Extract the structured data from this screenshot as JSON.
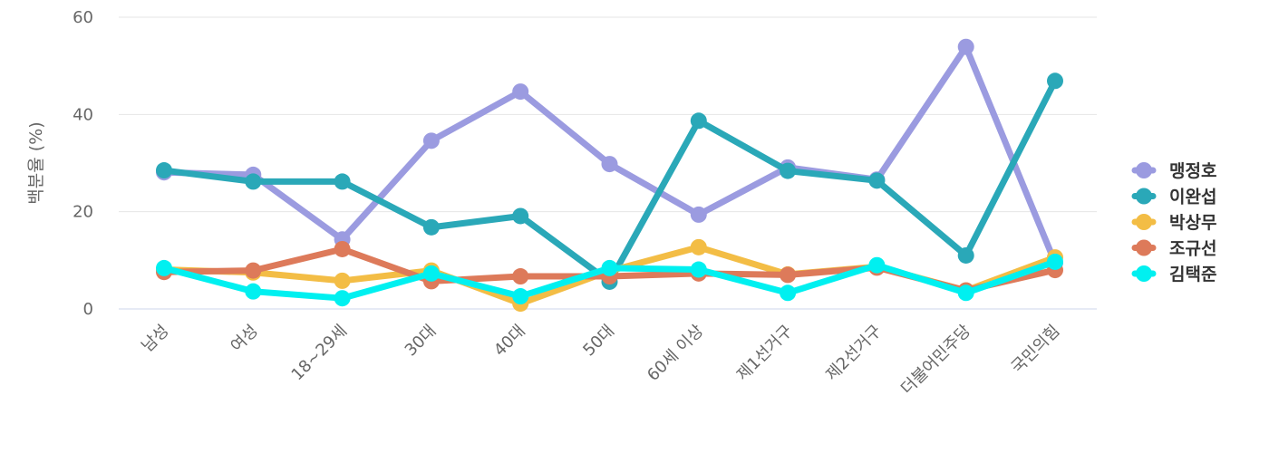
{
  "chart_data": {
    "type": "line",
    "title": "",
    "xlabel": "",
    "ylabel": "백분율 (%)",
    "ylim": [
      0,
      60
    ],
    "yticks": [
      0,
      20,
      40,
      60
    ],
    "categories": [
      "남성",
      "여성",
      "18~29세",
      "30대",
      "40대",
      "50대",
      "60세 이상",
      "제1선거구",
      "제2선거구",
      "더불어민주당",
      "국민의힘"
    ],
    "series": [
      {
        "name": "맹정호",
        "color": "#9b9be0",
        "values": [
          28.1,
          27.6,
          14.3,
          34.6,
          44.7,
          29.8,
          19.4,
          29.1,
          26.6,
          53.9,
          9.5
        ]
      },
      {
        "name": "이완섭",
        "color": "#2aa8b8",
        "values": [
          28.5,
          26.2,
          26.2,
          16.8,
          19.1,
          5.6,
          38.7,
          28.4,
          26.4,
          11.0,
          46.9
        ]
      },
      {
        "name": "박상무",
        "color": "#f3bd45",
        "values": [
          8.1,
          7.5,
          5.8,
          7.9,
          1.1,
          7.8,
          12.7,
          7.1,
          8.7,
          3.8,
          10.6
        ]
      },
      {
        "name": "조규선",
        "color": "#dd7a5a",
        "values": [
          7.6,
          7.9,
          12.3,
          5.7,
          6.7,
          6.7,
          7.3,
          7.0,
          8.5,
          3.8,
          8.0
        ]
      },
      {
        "name": "김택준",
        "color": "#00f0f0",
        "values": [
          8.4,
          3.6,
          2.2,
          7.3,
          2.6,
          8.4,
          8.1,
          3.3,
          9.0,
          3.3,
          9.7
        ]
      }
    ],
    "legend_position": "right",
    "grid": true
  }
}
